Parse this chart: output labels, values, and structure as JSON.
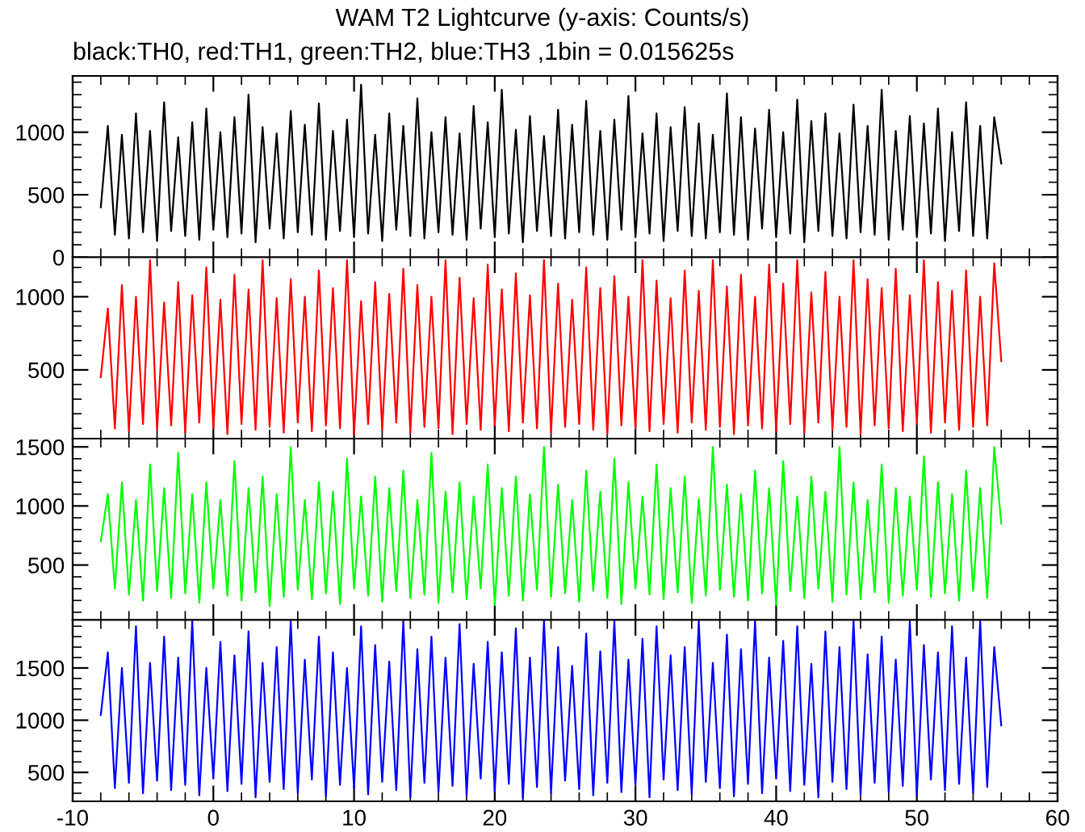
{
  "chart_data": [
    {
      "type": "line",
      "title": "WAM T2 Lightcurve (y-axis: Counts/s)",
      "subtitle": "black:TH0, red:TH1, green:TH2, blue:TH3 ,1bin = 0.015625s",
      "x": [
        -8,
        -7.5,
        -7,
        -6.5,
        -6,
        -5.5,
        -5,
        -4.5,
        -4,
        -3.5,
        -3,
        -2.5,
        -2,
        -1.5,
        -1,
        -0.5,
        0,
        0.5,
        1,
        1.5,
        2,
        2.5,
        3,
        3.5,
        4,
        4.5,
        5,
        5.5,
        6,
        6.5,
        7,
        7.5,
        8,
        8.5,
        9,
        9.5,
        10,
        10.5,
        11,
        11.5,
        12,
        12.5,
        13,
        13.5,
        14,
        14.5,
        15,
        15.5,
        16,
        16.5,
        17,
        17.5,
        18,
        18.5,
        19,
        19.5,
        20,
        20.5,
        21,
        21.5,
        22,
        22.5,
        23,
        23.5,
        24,
        24.5,
        25,
        25.5,
        26,
        26.5,
        27,
        27.5,
        28,
        28.5,
        29,
        29.5,
        30,
        30.5,
        31,
        31.5,
        32,
        32.5,
        33,
        33.5,
        34,
        34.5,
        35,
        35.5,
        36,
        36.5,
        37,
        37.5,
        38,
        38.5,
        39,
        39.5,
        40,
        40.5,
        41,
        41.5,
        42,
        42.5,
        43,
        43.5,
        44,
        44.5,
        45,
        45.5,
        46,
        46.5,
        47,
        47.5,
        48,
        48.5,
        49,
        49.5,
        50,
        50.5,
        51,
        51.5,
        52,
        52.5,
        53,
        53.5,
        54,
        54.5,
        55,
        55.5,
        56
      ],
      "series": [
        {
          "color": "#000000",
          "values": [
            400,
            1050,
            180,
            980,
            150,
            1150,
            200,
            1010,
            130,
            1240,
            210,
            960,
            170,
            1080,
            140,
            1190,
            220,
            1000,
            160,
            1120,
            190,
            1300,
            120,
            1040,
            230,
            990,
            150,
            1170,
            200,
            1060,
            180,
            1230,
            140,
            1010,
            210,
            1100,
            160,
            1380,
            190,
            980,
            130,
            1150,
            220,
            1050,
            170,
            1270,
            150,
            1000,
            200,
            1120,
            180,
            990,
            140,
            1210,
            230,
            1080,
            160,
            1340,
            190,
            1020,
            120,
            1130,
            210,
            970,
            170,
            1180,
            150,
            1060,
            200,
            1250,
            180,
            1010,
            140,
            1100,
            220,
            1290,
            160,
            990,
            190,
            1150,
            130,
            1040,
            210,
            1200,
            170,
            1070,
            150,
            980,
            200,
            1310,
            180,
            1120,
            140,
            1030,
            230,
            1180,
            160,
            1000,
            190,
            1260,
            120,
            1090,
            210,
            1150,
            170,
            990,
            150,
            1220,
            200,
            1050,
            180,
            1340,
            140,
            1010,
            220,
            1130,
            160,
            1070,
            190,
            1190,
            130,
            1000,
            210,
            1240,
            170,
            1050,
            150,
            1120,
            750
          ]
        }
      ],
      "xlim": [
        -10,
        60
      ],
      "xticks": [
        -10,
        0,
        10,
        20,
        30,
        40,
        50,
        60
      ],
      "ylim": [
        0,
        1450
      ],
      "yticks": [
        0,
        500,
        1000
      ],
      "tick_labels": "y"
    },
    {
      "type": "line",
      "x": [
        -8,
        -7.5,
        -7,
        -6.5,
        -6,
        -5.5,
        -5,
        -4.5,
        -4,
        -3.5,
        -3,
        -2.5,
        -2,
        -1.5,
        -1,
        -0.5,
        0,
        0.5,
        1,
        1.5,
        2,
        2.5,
        3,
        3.5,
        4,
        4.5,
        5,
        5.5,
        6,
        6.5,
        7,
        7.5,
        8,
        8.5,
        9,
        9.5,
        10,
        10.5,
        11,
        11.5,
        12,
        12.5,
        13,
        13.5,
        14,
        14.5,
        15,
        15.5,
        16,
        16.5,
        17,
        17.5,
        18,
        18.5,
        19,
        19.5,
        20,
        20.5,
        21,
        21.5,
        22,
        22.5,
        23,
        23.5,
        24,
        24.5,
        25,
        25.5,
        26,
        26.5,
        27,
        27.5,
        28,
        28.5,
        29,
        29.5,
        30,
        30.5,
        31,
        31.5,
        32,
        32.5,
        33,
        33.5,
        34,
        34.5,
        35,
        35.5,
        36,
        36.5,
        37,
        37.5,
        38,
        38.5,
        39,
        39.5,
        40,
        40.5,
        41,
        41.5,
        42,
        42.5,
        43,
        43.5,
        44,
        44.5,
        45,
        45.5,
        46,
        46.5,
        47,
        47.5,
        48,
        48.5,
        49,
        49.5,
        50,
        50.5,
        51,
        51.5,
        52,
        52.5,
        53,
        53.5,
        54,
        54.5,
        55,
        55.5,
        56
      ],
      "series": [
        {
          "color": "#ff0000",
          "values": [
            450,
            920,
            100,
            1080,
            80,
            1000,
            130,
            1250,
            90,
            960,
            120,
            1100,
            70,
            1010,
            140,
            1200,
            100,
            980,
            60,
            1150,
            130,
            1050,
            90,
            1250,
            110,
            990,
            70,
            1120,
            140,
            1000,
            80,
            1180,
            120,
            1060,
            100,
            1250,
            60,
            970,
            130,
            1100,
            90,
            1020,
            140,
            1190,
            70,
            1080,
            110,
            1000,
            100,
            1250,
            60,
            1130,
            130,
            990,
            90,
            1220,
            120,
            1050,
            80,
            1160,
            140,
            1010,
            100,
            1250,
            70,
            1090,
            110,
            980,
            130,
            1200,
            90,
            1060,
            60,
            1140,
            120,
            1000,
            100,
            1250,
            80,
            1110,
            130,
            990,
            70,
            1180,
            140,
            1040,
            90,
            1250,
            110,
            1070,
            60,
            1150,
            120,
            1000,
            100,
            1220,
            80,
            1090,
            130,
            1250,
            70,
            1030,
            140,
            1170,
            90,
            1000,
            110,
            1250,
            60,
            1120,
            120,
            1060,
            100,
            1190,
            80,
            1010,
            130,
            1250,
            70,
            1100,
            140,
            1040,
            90,
            1180,
            110,
            1000,
            120,
            1230,
            560
          ]
        }
      ],
      "xlim": [
        -10,
        60
      ],
      "xticks": [
        -10,
        0,
        10,
        20,
        30,
        40,
        50,
        60
      ],
      "ylim": [
        30,
        1270
      ],
      "yticks": [
        500,
        1000
      ],
      "tick_labels": "y"
    },
    {
      "type": "line",
      "x": [
        -8,
        -7.5,
        -7,
        -6.5,
        -6,
        -5.5,
        -5,
        -4.5,
        -4,
        -3.5,
        -3,
        -2.5,
        -2,
        -1.5,
        -1,
        -0.5,
        0,
        0.5,
        1,
        1.5,
        2,
        2.5,
        3,
        3.5,
        4,
        4.5,
        5,
        5.5,
        6,
        6.5,
        7,
        7.5,
        8,
        8.5,
        9,
        9.5,
        10,
        10.5,
        11,
        11.5,
        12,
        12.5,
        13,
        13.5,
        14,
        14.5,
        15,
        15.5,
        16,
        16.5,
        17,
        17.5,
        18,
        18.5,
        19,
        19.5,
        20,
        20.5,
        21,
        21.5,
        22,
        22.5,
        23,
        23.5,
        24,
        24.5,
        25,
        25.5,
        26,
        26.5,
        27,
        27.5,
        28,
        28.5,
        29,
        29.5,
        30,
        30.5,
        31,
        31.5,
        32,
        32.5,
        33,
        33.5,
        34,
        34.5,
        35,
        35.5,
        36,
        36.5,
        37,
        37.5,
        38,
        38.5,
        39,
        39.5,
        40,
        40.5,
        41,
        41.5,
        42,
        42.5,
        43,
        43.5,
        44,
        44.5,
        45,
        45.5,
        46,
        46.5,
        47,
        47.5,
        48,
        48.5,
        49,
        49.5,
        50,
        50.5,
        51,
        51.5,
        52,
        52.5,
        53,
        53.5,
        54,
        54.5,
        55,
        55.5,
        56
      ],
      "series": [
        {
          "color": "#00ff00",
          "values": [
            700,
            1100,
            300,
            1200,
            250,
            1050,
            200,
            1350,
            280,
            1150,
            220,
            1450,
            260,
            1100,
            180,
            1200,
            300,
            1050,
            240,
            1380,
            200,
            1150,
            270,
            1250,
            150,
            1100,
            230,
            1500,
            290,
            1050,
            210,
            1200,
            260,
            1120,
            170,
            1400,
            300,
            1080,
            240,
            1250,
            190,
            1150,
            280,
            1300,
            220,
            1050,
            250,
            1450,
            180,
            1120,
            270,
            1200,
            210,
            1080,
            300,
            1350,
            160,
            1150,
            240,
            1250,
            200,
            1100,
            290,
            1500,
            230,
            1180,
            260,
            1050,
            190,
            1300,
            280,
            1120,
            220,
            1400,
            170,
            1200,
            300,
            1080,
            250,
            1350,
            210,
            1150,
            270,
            1250,
            180,
            1060,
            240,
            1500,
            290,
            1180,
            230,
            1100,
            200,
            1300,
            260,
            1150,
            160,
            1380,
            280,
            1080,
            220,
            1250,
            300,
            1120,
            190,
            1500,
            250,
            1200,
            210,
            1050,
            270,
            1350,
            180,
            1150,
            240,
            1080,
            290,
            1420,
            230,
            1200,
            260,
            1100,
            200,
            1300,
            280,
            1150,
            220,
            1500,
            850
          ]
        }
      ],
      "xlim": [
        -10,
        60
      ],
      "xticks": [
        -10,
        0,
        10,
        20,
        30,
        40,
        50,
        60
      ],
      "ylim": [
        35,
        1570
      ],
      "yticks": [
        500,
        1000,
        1500
      ],
      "tick_labels": "y"
    },
    {
      "type": "line",
      "x": [
        -8,
        -7.5,
        -7,
        -6.5,
        -6,
        -5.5,
        -5,
        -4.5,
        -4,
        -3.5,
        -3,
        -2.5,
        -2,
        -1.5,
        -1,
        -0.5,
        0,
        0.5,
        1,
        1.5,
        2,
        2.5,
        3,
        3.5,
        4,
        4.5,
        5,
        5.5,
        6,
        6.5,
        7,
        7.5,
        8,
        8.5,
        9,
        9.5,
        10,
        10.5,
        11,
        11.5,
        12,
        12.5,
        13,
        13.5,
        14,
        14.5,
        15,
        15.5,
        16,
        16.5,
        17,
        17.5,
        18,
        18.5,
        19,
        19.5,
        20,
        20.5,
        21,
        21.5,
        22,
        22.5,
        23,
        23.5,
        24,
        24.5,
        25,
        25.5,
        26,
        26.5,
        27,
        27.5,
        28,
        28.5,
        29,
        29.5,
        30,
        30.5,
        31,
        31.5,
        32,
        32.5,
        33,
        33.5,
        34,
        34.5,
        35,
        35.5,
        36,
        36.5,
        37,
        37.5,
        38,
        38.5,
        39,
        39.5,
        40,
        40.5,
        41,
        41.5,
        42,
        42.5,
        43,
        43.5,
        44,
        44.5,
        45,
        45.5,
        46,
        46.5,
        47,
        47.5,
        48,
        48.5,
        49,
        49.5,
        50,
        50.5,
        51,
        51.5,
        52,
        52.5,
        53,
        53.5,
        54,
        54.5,
        55,
        55.5,
        56
      ],
      "series": [
        {
          "color": "#0000ff",
          "values": [
            1050,
            1650,
            350,
            1500,
            400,
            1900,
            300,
            1550,
            420,
            1800,
            330,
            1600,
            380,
            1950,
            280,
            1500,
            440,
            1750,
            320,
            1620,
            390,
            1850,
            260,
            1550,
            410,
            1700,
            340,
            1950,
            300,
            1580,
            430,
            1800,
            270,
            1650,
            380,
            1500,
            350,
            1900,
            290,
            1720,
            410,
            1560,
            330,
            1950,
            260,
            1680,
            400,
            1800,
            310,
            1600,
            370,
            1920,
            280,
            1540,
            440,
            1750,
            320,
            1650,
            390,
            1880,
            250,
            1600,
            360,
            1950,
            300,
            1700,
            420,
            1520,
            340,
            1830,
            280,
            1660,
            400,
            1950,
            310,
            1580,
            380,
            1780,
            260,
            1900,
            430,
            1620,
            330,
            1700,
            290,
            1950,
            410,
            1550,
            350,
            1820,
            270,
            1680,
            390,
            1950,
            300,
            1600,
            440,
            1760,
            320,
            1900,
            380,
            1540,
            260,
            1850,
            410,
            1700,
            340,
            1950,
            290,
            1630,
            400,
            1800,
            310,
            1580,
            370,
            1950,
            280,
            1720,
            430,
            1650,
            330,
            1900,
            390,
            1600,
            300,
            1950,
            360,
            1700,
            950
          ]
        }
      ],
      "xlim": [
        -10,
        60
      ],
      "xticks": [
        -10,
        0,
        10,
        20,
        30,
        40,
        50,
        60
      ],
      "ylim": [
        223,
        1960
      ],
      "yticks": [
        500,
        1000,
        1500
      ]
    }
  ]
}
